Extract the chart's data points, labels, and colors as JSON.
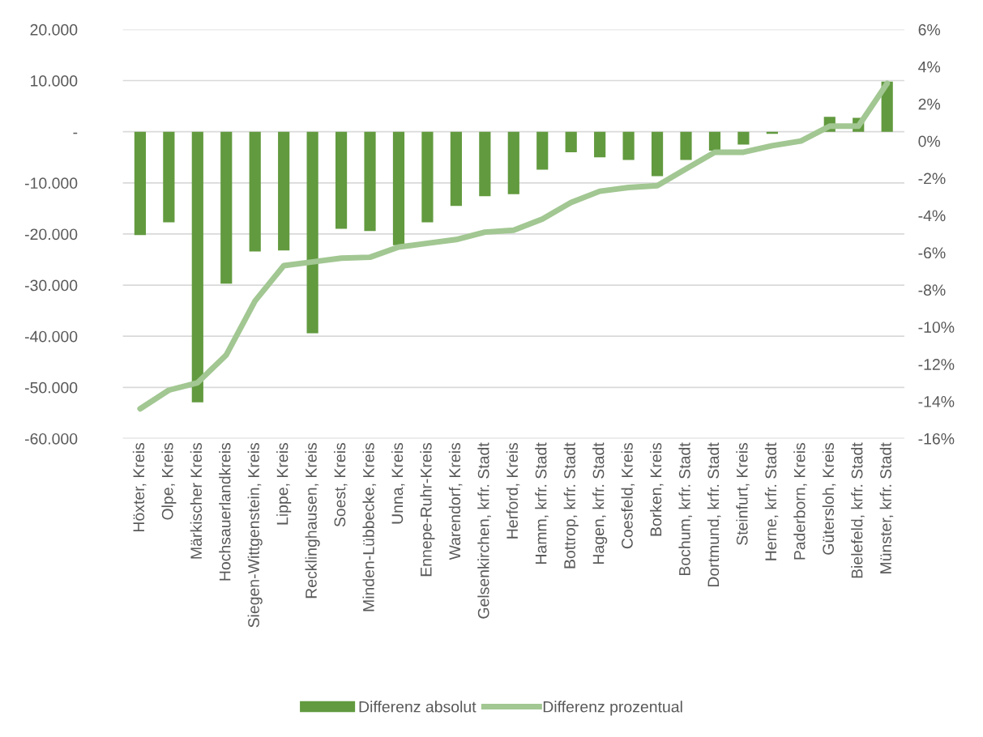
{
  "chart_data": {
    "type": "bar",
    "categories": [
      "Höxter, Kreis",
      "Olpe, Kreis",
      "Märkischer Kreis",
      "Hochsauerlandkreis",
      "Siegen-Wittgenstein, Kreis",
      "Lippe, Kreis",
      "Recklinghausen, Kreis",
      "Soest, Kreis",
      "Minden-Lübbecke, Kreis",
      "Unna, Kreis",
      "Ennepe-Ruhr-Kreis",
      "Warendorf, Kreis",
      "Gelsenkirchen, krfr. Stadt",
      "Herford, Kreis",
      "Hamm, krfr. Stadt",
      "Bottrop, krfr. Stadt",
      "Hagen, krfr. Stadt",
      "Coesfeld, Kreis",
      "Borken, Kreis",
      "Bochum, krfr. Stadt",
      "Dortmund, krfr. Stadt",
      "Steinfurt, Kreis",
      "Herne, krfr. Stadt",
      "Paderborn, Kreis",
      "Gütersloh, Kreis",
      "Bielefeld, krfr. Stadt",
      "Münster, krfr. Stadt"
    ],
    "series": [
      {
        "name": "Differenz absolut",
        "color": "#629a3f",
        "values": [
          -20200,
          -17700,
          -52900,
          -29700,
          -23400,
          -23200,
          -39400,
          -19000,
          -19400,
          -22200,
          -17700,
          -14500,
          -12600,
          -12200,
          -7400,
          -4000,
          -5000,
          -5500,
          -8700,
          -5500,
          -3700,
          -2500,
          -400,
          0,
          2900,
          2700,
          9800
        ]
      },
      {
        "name": "Differenz prozentual",
        "type": "line",
        "axis": "y2",
        "color": "#a2c792",
        "values": [
          -14.4,
          -13.4,
          -13.0,
          -11.5,
          -8.6,
          -6.7,
          -6.5,
          -6.3,
          -6.25,
          -5.7,
          -5.5,
          -5.3,
          -4.9,
          -4.8,
          -4.2,
          -3.3,
          -2.7,
          -2.5,
          -2.4,
          -1.5,
          -0.6,
          -0.6,
          -0.25,
          0.0,
          0.8,
          0.8,
          3.1
        ]
      }
    ],
    "ylim": [
      -60000,
      20000
    ],
    "yticks": [
      {
        "value": -60000,
        "label": "-60.000"
      },
      {
        "value": -50000,
        "label": "-50.000"
      },
      {
        "value": -40000,
        "label": "-40.000"
      },
      {
        "value": -30000,
        "label": "-30.000"
      },
      {
        "value": -20000,
        "label": "-20.000"
      },
      {
        "value": -10000,
        "label": "-10.000"
      },
      {
        "value": 0,
        "label": "-"
      },
      {
        "value": 10000,
        "label": "10.000"
      },
      {
        "value": 20000,
        "label": "20.000"
      }
    ],
    "y2lim": [
      -16,
      6
    ],
    "y2ticks": [
      {
        "value": -16,
        "label": "-16%"
      },
      {
        "value": -14,
        "label": "-14%"
      },
      {
        "value": -12,
        "label": "-12%"
      },
      {
        "value": -10,
        "label": "-10%"
      },
      {
        "value": -8,
        "label": "-8%"
      },
      {
        "value": -6,
        "label": "-6%"
      },
      {
        "value": -4,
        "label": "-4%"
      },
      {
        "value": -2,
        "label": "-2%"
      },
      {
        "value": 0,
        "label": "0%"
      },
      {
        "value": 2,
        "label": "2%"
      },
      {
        "value": 4,
        "label": "4%"
      },
      {
        "value": 6,
        "label": "6%"
      }
    ],
    "grid": "y",
    "legend": "bottom"
  }
}
